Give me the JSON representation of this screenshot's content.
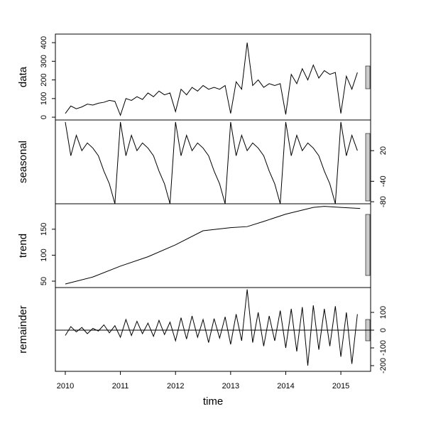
{
  "chart_data": [
    {
      "type": "line",
      "ylabel": "data",
      "color": "#000000",
      "axis_side": "left",
      "x": [
        2010.0,
        2010.1,
        2010.2,
        2010.3,
        2010.4,
        2010.5,
        2010.6,
        2010.7,
        2010.8,
        2010.9,
        2011.0,
        2011.1,
        2011.2,
        2011.3,
        2011.4,
        2011.5,
        2011.6,
        2011.7,
        2011.8,
        2011.9,
        2012.0,
        2012.1,
        2012.2,
        2012.3,
        2012.4,
        2012.5,
        2012.6,
        2012.7,
        2012.8,
        2012.9,
        2013.0,
        2013.1,
        2013.2,
        2013.3,
        2013.4,
        2013.5,
        2013.6,
        2013.7,
        2013.8,
        2013.9,
        2014.0,
        2014.1,
        2014.2,
        2014.3,
        2014.4,
        2014.5,
        2014.6,
        2014.7,
        2014.8,
        2014.9,
        2015.0,
        2015.1,
        2015.2,
        2015.3
      ],
      "values": [
        20,
        60,
        45,
        55,
        70,
        65,
        75,
        80,
        90,
        85,
        10,
        100,
        90,
        110,
        95,
        130,
        110,
        140,
        120,
        130,
        30,
        150,
        120,
        160,
        140,
        170,
        150,
        160,
        150,
        170,
        20,
        190,
        150,
        400,
        170,
        200,
        160,
        180,
        170,
        180,
        15,
        230,
        180,
        260,
        200,
        280,
        210,
        250,
        230,
        240,
        20,
        220,
        150,
        240
      ],
      "xlim": [
        2009.82,
        2015.54
      ],
      "ylim": [
        -15,
        446
      ],
      "yticks": [
        0,
        100,
        200,
        300,
        400
      ]
    },
    {
      "type": "line",
      "ylabel": "seasonal",
      "color": "#000000",
      "axis_side": "right",
      "x": [
        2010.0,
        2010.1,
        2010.2,
        2010.3,
        2010.4,
        2010.5,
        2010.6,
        2010.7,
        2010.8,
        2010.9,
        2011.0,
        2011.1,
        2011.2,
        2011.3,
        2011.4,
        2011.5,
        2011.6,
        2011.7,
        2011.8,
        2011.9,
        2012.0,
        2012.1,
        2012.2,
        2012.3,
        2012.4,
        2012.5,
        2012.6,
        2012.7,
        2012.8,
        2012.9,
        2013.0,
        2013.1,
        2013.2,
        2013.3,
        2013.4,
        2013.5,
        2013.6,
        2013.7,
        2013.8,
        2013.9,
        2014.0,
        2014.1,
        2014.2,
        2014.3,
        2014.4,
        2014.5,
        2014.6,
        2014.7,
        2014.8,
        2014.9,
        2015.0,
        2015.1,
        2015.2,
        2015.3
      ],
      "values": [
        76,
        10,
        50,
        20,
        35,
        25,
        10,
        -20,
        -45,
        -84,
        76,
        10,
        50,
        20,
        35,
        25,
        10,
        -20,
        -45,
        -84,
        76,
        10,
        50,
        20,
        35,
        25,
        10,
        -20,
        -45,
        -84,
        76,
        10,
        50,
        20,
        35,
        25,
        10,
        -20,
        -45,
        -84,
        76,
        10,
        50,
        20,
        35,
        25,
        10,
        -20,
        -45,
        -84,
        76,
        10,
        50,
        20
      ],
      "xlim": [
        2009.82,
        2015.54
      ],
      "ylim": [
        -84,
        80
      ],
      "yticks": [
        -80,
        -40,
        20
      ]
    },
    {
      "type": "line",
      "ylabel": "trend",
      "color": "#000000",
      "axis_side": "left",
      "x": [
        2010.0,
        2010.5,
        2011.0,
        2011.5,
        2012.0,
        2012.5,
        2013.0,
        2013.3,
        2013.6,
        2014.0,
        2014.5,
        2014.7,
        2015.0,
        2015.35
      ],
      "values": [
        44.5,
        58,
        79,
        97,
        120,
        147,
        153,
        155,
        165,
        179,
        192,
        194,
        192,
        190
      ],
      "xlim": [
        2009.82,
        2015.54
      ],
      "ylim": [
        37.7,
        199
      ],
      "yticks": [
        50,
        100,
        150
      ]
    },
    {
      "type": "line",
      "ylabel": "remainder",
      "color": "#000000",
      "axis_side": "right",
      "xlabel": "time",
      "x": [
        2010.0,
        2010.1,
        2010.2,
        2010.3,
        2010.4,
        2010.5,
        2010.6,
        2010.7,
        2010.8,
        2010.9,
        2011.0,
        2011.1,
        2011.2,
        2011.3,
        2011.4,
        2011.5,
        2011.6,
        2011.7,
        2011.8,
        2011.9,
        2012.0,
        2012.1,
        2012.2,
        2012.3,
        2012.4,
        2012.5,
        2012.6,
        2012.7,
        2012.8,
        2012.9,
        2013.0,
        2013.1,
        2013.2,
        2013.3,
        2013.4,
        2013.5,
        2013.6,
        2013.7,
        2013.8,
        2013.9,
        2014.0,
        2014.1,
        2014.2,
        2014.3,
        2014.4,
        2014.5,
        2014.6,
        2014.7,
        2014.8,
        2014.9,
        2015.0,
        2015.1,
        2015.2,
        2015.3
      ],
      "values": [
        -30,
        20,
        -10,
        15,
        -20,
        10,
        -5,
        30,
        -15,
        25,
        -40,
        60,
        -30,
        50,
        -20,
        40,
        -35,
        55,
        -25,
        45,
        -60,
        70,
        -50,
        80,
        -40,
        60,
        -70,
        65,
        -45,
        75,
        -80,
        90,
        -60,
        230,
        -70,
        100,
        -90,
        80,
        -60,
        110,
        -100,
        120,
        -120,
        130,
        -200,
        140,
        -110,
        120,
        -90,
        135,
        -150,
        100,
        -190,
        90
      ],
      "xlim": [
        2009.82,
        2015.54
      ],
      "ylim": [
        -232,
        240
      ],
      "yticks": [
        -200,
        -100,
        0,
        100
      ],
      "xticks": [
        2010,
        2011,
        2012,
        2013,
        2014,
        2015
      ]
    }
  ]
}
